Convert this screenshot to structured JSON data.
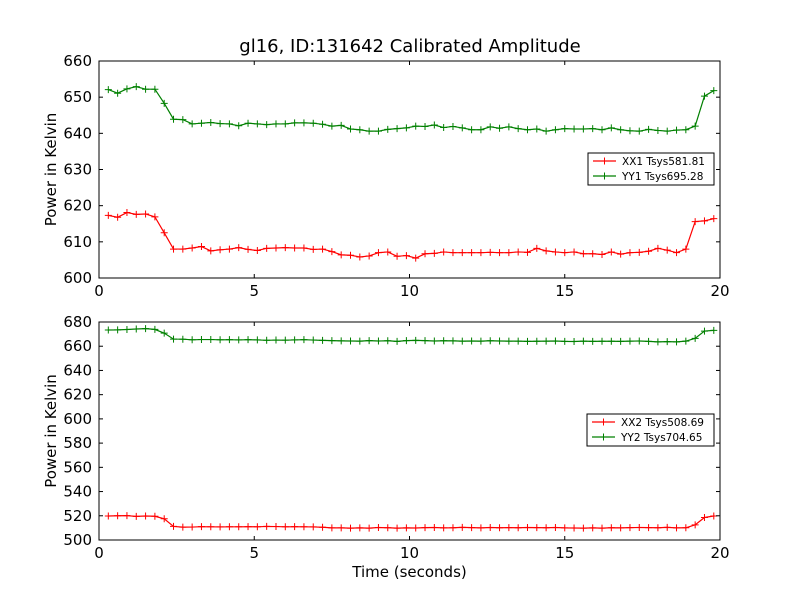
{
  "figure": {
    "title": "gl16, ID:131642 Calibrated Amplitude"
  },
  "chart_data": [
    {
      "type": "line",
      "title": "gl16, ID:131642 Calibrated Amplitude",
      "xlabel": "",
      "ylabel": "Power in Kelvin",
      "xlim": [
        0,
        20
      ],
      "ylim": [
        600,
        660
      ],
      "xticks": [
        "0",
        "5",
        "10",
        "15",
        "20"
      ],
      "yticks": [
        "600",
        "610",
        "620",
        "630",
        "640",
        "650",
        "660"
      ],
      "grid": false,
      "legend_position": "center-right",
      "marker": "plus",
      "x": [
        0.3,
        0.6,
        0.9,
        1.2,
        1.5,
        1.8,
        2.1,
        2.4,
        2.7,
        3.0,
        3.3,
        3.6,
        3.9,
        4.2,
        4.5,
        4.8,
        5.1,
        5.4,
        5.7,
        6.0,
        6.3,
        6.6,
        6.9,
        7.2,
        7.5,
        7.8,
        8.1,
        8.4,
        8.7,
        9.0,
        9.3,
        9.6,
        9.9,
        10.2,
        10.5,
        10.8,
        11.1,
        11.4,
        11.7,
        12.0,
        12.3,
        12.6,
        12.9,
        13.2,
        13.5,
        13.8,
        14.1,
        14.4,
        14.7,
        15.0,
        15.3,
        15.6,
        15.9,
        16.2,
        16.5,
        16.8,
        17.1,
        17.4,
        17.7,
        18.0,
        18.3,
        18.6,
        18.9,
        19.2,
        19.5,
        19.8
      ],
      "series": [
        {
          "name": "XX1 Tsys581.81",
          "color": "#ff0000",
          "values": [
            617.3,
            616.8,
            618.1,
            617.6,
            617.7,
            616.9,
            612.5,
            608.0,
            608.0,
            608.3,
            608.7,
            607.5,
            607.8,
            608.0,
            608.4,
            607.9,
            607.6,
            608.2,
            608.3,
            608.4,
            608.3,
            608.3,
            607.9,
            608.0,
            607.3,
            606.4,
            606.3,
            605.8,
            606.1,
            607.0,
            607.2,
            606.0,
            606.2,
            605.5,
            606.7,
            606.8,
            607.2,
            607.0,
            607.0,
            607.0,
            607.0,
            607.1,
            607.0,
            607.0,
            607.2,
            607.1,
            608.2,
            607.5,
            607.2,
            607.0,
            607.2,
            606.7,
            606.7,
            606.5,
            607.2,
            606.6,
            607.0,
            607.1,
            607.4,
            608.2,
            607.7,
            607.0,
            608.0,
            615.6,
            615.8,
            616.4
          ]
        },
        {
          "name": "YY1 Tsys695.28",
          "color": "#008000",
          "values": [
            652.1,
            651.1,
            652.3,
            652.9,
            652.2,
            652.2,
            648.3,
            643.9,
            643.8,
            642.6,
            642.8,
            643.0,
            642.7,
            642.6,
            642.1,
            642.8,
            642.6,
            642.4,
            642.6,
            642.6,
            642.9,
            642.9,
            642.8,
            642.5,
            642.0,
            642.2,
            641.2,
            641.0,
            640.6,
            640.6,
            641.1,
            641.3,
            641.5,
            642.0,
            641.9,
            642.3,
            641.6,
            641.9,
            641.5,
            641.0,
            641.0,
            641.8,
            641.4,
            641.8,
            641.3,
            641.0,
            641.2,
            640.6,
            641.0,
            641.3,
            641.2,
            641.2,
            641.3,
            641.0,
            641.5,
            641.0,
            640.7,
            640.6,
            641.1,
            640.8,
            640.6,
            640.9,
            641.0,
            642.0,
            650.3,
            651.8
          ]
        }
      ]
    },
    {
      "type": "line",
      "title": "",
      "xlabel": "Time (seconds)",
      "ylabel": "Power in Kelvin",
      "xlim": [
        0,
        20
      ],
      "ylim": [
        500,
        680
      ],
      "xticks": [
        "0",
        "5",
        "10",
        "15",
        "20"
      ],
      "yticks": [
        "500",
        "520",
        "540",
        "560",
        "580",
        "600",
        "620",
        "640",
        "660",
        "680"
      ],
      "grid": false,
      "legend_position": "center-right",
      "marker": "plus",
      "x": [
        0.3,
        0.6,
        0.9,
        1.2,
        1.5,
        1.8,
        2.1,
        2.4,
        2.7,
        3.0,
        3.3,
        3.6,
        3.9,
        4.2,
        4.5,
        4.8,
        5.1,
        5.4,
        5.7,
        6.0,
        6.3,
        6.6,
        6.9,
        7.2,
        7.5,
        7.8,
        8.1,
        8.4,
        8.7,
        9.0,
        9.3,
        9.6,
        9.9,
        10.2,
        10.5,
        10.8,
        11.1,
        11.4,
        11.7,
        12.0,
        12.3,
        12.6,
        12.9,
        13.2,
        13.5,
        13.8,
        14.1,
        14.4,
        14.7,
        15.0,
        15.3,
        15.6,
        15.9,
        16.2,
        16.5,
        16.8,
        17.1,
        17.4,
        17.7,
        18.0,
        18.3,
        18.6,
        18.9,
        19.2,
        19.5,
        19.8
      ],
      "series": [
        {
          "name": "XX2 Tsys508.69",
          "color": "#ff0000",
          "values": [
            519.8,
            520.0,
            520.1,
            519.5,
            519.8,
            519.6,
            517.5,
            511.2,
            510.6,
            510.7,
            511.0,
            510.9,
            510.8,
            510.9,
            510.9,
            511.0,
            510.9,
            511.2,
            511.1,
            510.9,
            511.0,
            510.9,
            510.8,
            510.5,
            510.0,
            510.0,
            509.8,
            510.0,
            509.8,
            510.3,
            510.1,
            509.8,
            510.0,
            509.9,
            510.2,
            510.3,
            510.0,
            510.1,
            510.4,
            510.2,
            510.0,
            510.3,
            510.1,
            510.2,
            510.1,
            510.3,
            510.2,
            510.1,
            510.3,
            510.0,
            509.9,
            509.8,
            510.0,
            509.8,
            510.1,
            510.0,
            510.2,
            510.3,
            510.2,
            510.1,
            510.4,
            510.0,
            510.1,
            512.5,
            518.6,
            519.8
          ]
        },
        {
          "name": "YY2 Tsys704.65",
          "color": "#008000",
          "values": [
            673.4,
            673.5,
            673.8,
            674.2,
            674.5,
            673.9,
            670.8,
            665.9,
            665.8,
            665.3,
            665.5,
            665.5,
            665.3,
            665.4,
            665.2,
            665.4,
            665.2,
            664.9,
            665.1,
            665.0,
            665.2,
            665.4,
            665.1,
            664.8,
            664.6,
            664.4,
            664.3,
            664.2,
            664.6,
            664.3,
            664.5,
            664.0,
            664.6,
            664.8,
            664.6,
            664.3,
            664.5,
            664.4,
            664.2,
            664.3,
            664.2,
            664.5,
            664.3,
            664.2,
            664.2,
            664.0,
            664.1,
            664.2,
            664.3,
            664.0,
            663.9,
            664.2,
            664.0,
            664.1,
            664.1,
            664.0,
            664.2,
            664.3,
            664.0,
            663.6,
            663.8,
            663.6,
            664.2,
            666.5,
            672.5,
            673.1
          ]
        }
      ]
    }
  ]
}
